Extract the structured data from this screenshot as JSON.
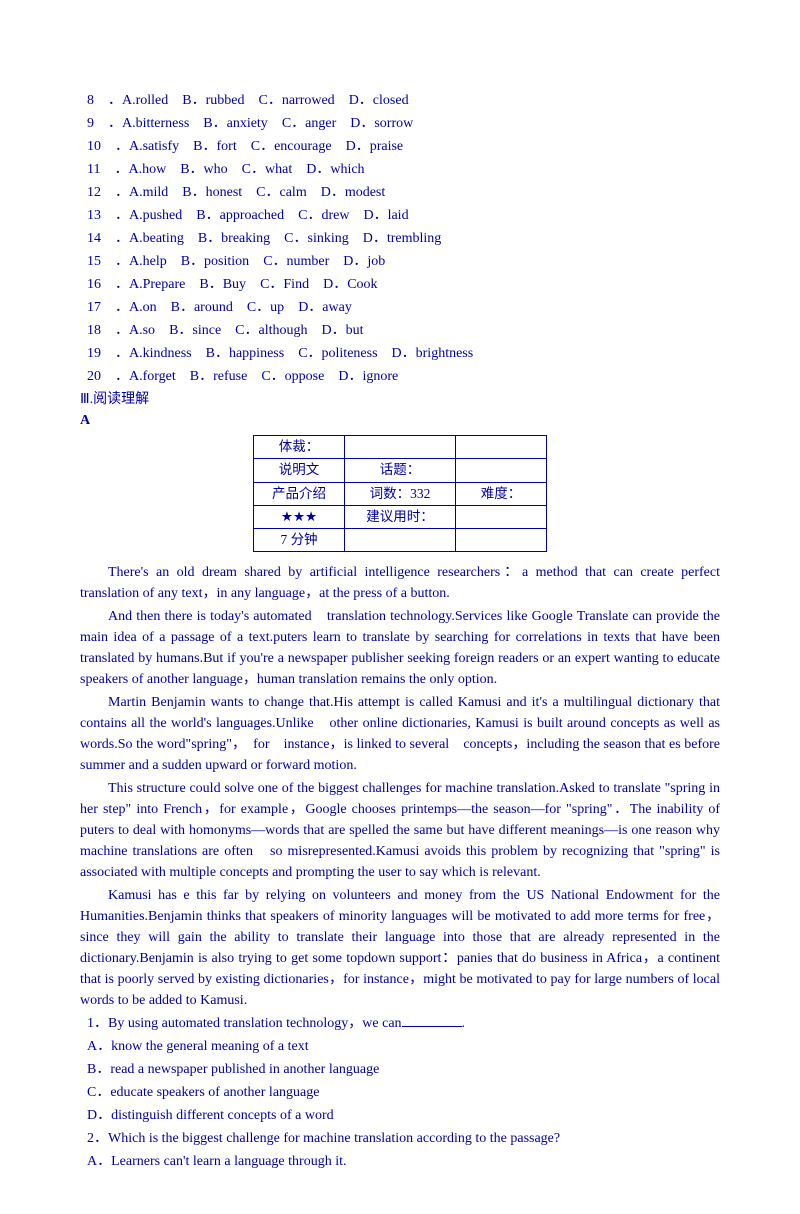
{
  "mc_questions": [
    {
      "num": "8",
      "a": "A.rolled",
      "b": "B．rubbed",
      "c": "C．narrowed",
      "d": "D．closed"
    },
    {
      "num": "9",
      "a": "A.bitterness",
      "b": "B．anxiety",
      "c": "C．anger",
      "d": "D．sorrow"
    },
    {
      "num": "10",
      "a": "A.satisfy",
      "b": "B．fort",
      "c": "C．encourage",
      "d": "D．praise"
    },
    {
      "num": "11",
      "a": "A.how",
      "b": "B．who",
      "c": "C．what",
      "d": "D．which"
    },
    {
      "num": "12",
      "a": "A.mild",
      "b": "B．honest",
      "c": "C．calm",
      "d": "D．modest"
    },
    {
      "num": "13",
      "a": "A.pushed",
      "b": "B．approached",
      "c": "C．drew",
      "d": "D．laid"
    },
    {
      "num": "14",
      "a": "A.beating",
      "b": "B．breaking",
      "c": "C．sinking",
      "d": "D．trembling"
    },
    {
      "num": "15",
      "a": "A.help",
      "b": "B．position",
      "c": "C．number",
      "d": "D．job"
    },
    {
      "num": "16",
      "a": "A.Prepare",
      "b": "B．Buy",
      "c": "C．Find",
      "d": "D．Cook"
    },
    {
      "num": "17",
      "a": "A.on",
      "b": "B．around",
      "c": "C．up",
      "d": "D．away"
    },
    {
      "num": "18",
      "a": "A.so",
      "b": "B．since",
      "c": "C．although",
      "d": "D．but"
    },
    {
      "num": "19",
      "a": "A.kindness",
      "b": "B．happiness",
      "c": "C．politeness",
      "d": "D．brightness"
    },
    {
      "num": "20",
      "a": "A.forget",
      "b": "B．refuse",
      "c": "C．oppose",
      "d": "D．ignore"
    }
  ],
  "section_heading": "Ⅲ.阅读理解",
  "sub_heading": "A",
  "info_table": {
    "r1c1": "体裁：",
    "r1c2": "",
    "r1c3": "",
    "r2c1": "说明文",
    "r2c2": "话题：",
    "r2c3": "",
    "r3c1": "产品介绍",
    "r3c2": "词数：332",
    "r3c3": "难度：",
    "r4c1": "★★★",
    "r4c2": "建议用时：",
    "r4c3": "",
    "r5c1": "7 分钟",
    "r5c2": "",
    "r5c3": ""
  },
  "paragraphs": [
    "There's an old dream shared by artificial intelligence researchers：a method that can create perfect translation of any text，in any language，at the press of a button.",
    "And then there is today's automated　translation technology.Services like Google Translate can provide the main idea of a passage of a text.puters learn to translate by searching for correlations in texts that have been translated by humans.But if you're a newspaper publisher seeking foreign readers or an expert wanting to educate speakers of another language，human translation remains the only option.",
    "Martin Benjamin wants to change that.His attempt is called Kamusi and it's a multilingual dictionary that contains all the world's languages.Unlike　other online dictionaries, Kamusi is built around concepts as well as words.So the word\"spring\"，　for　instance，is linked to several　concepts，including the season that es before summer and a sudden upward or forward motion.",
    "This structure could solve one of the biggest challenges for machine translation.Asked to translate \"spring in her step\" into French，for example，Google chooses printemps—the season—for \"spring\"．The inability of puters to deal with homonyms—words that are spelled the same but have different meanings—is one reason why machine translations are often　so misrepresented.Kamusi avoids this problem by recognizing that \"spring\" is associated with multiple concepts and prompting the user to say which is relevant.",
    "Kamusi has e this far by relying on volunteers and money from the US National Endowment for the Humanities.Benjamin thinks that speakers of minority languages will be motivated to add more terms for free，since they will gain the ability to translate their language into those that are already represented in the dictionary.Benjamin is also trying to get some top­down support：panies that do business in Africa，a continent that is poorly served by existing dictionaries，for instance，might be motivated to pay for large numbers of local　words to be added to Kamusi."
  ],
  "reading_q1": {
    "stem_pre": "1．By using automated translation technology，we can",
    "stem_post": ".",
    "a": "A．know the general meaning of a text",
    "b": "B．read a newspaper published in another language",
    "c": "C．educate speakers of another language",
    "d": "D．distinguish different concepts of a word"
  },
  "reading_q2": {
    "stem": "2．Which is the biggest challenge for machine translation according to the passage?",
    "a": "A．Learners can't learn a language through it."
  }
}
